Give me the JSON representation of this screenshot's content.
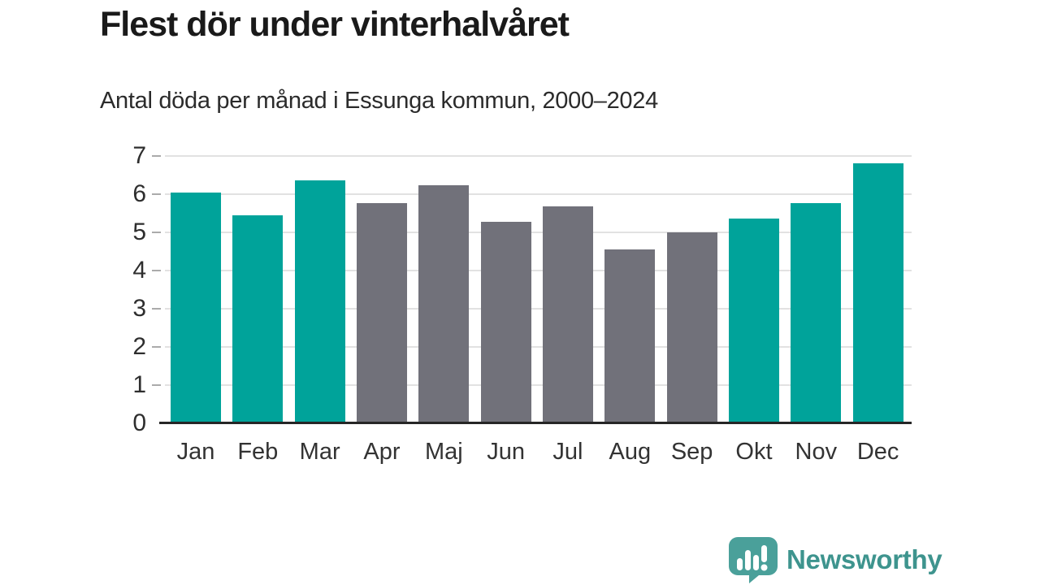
{
  "header": {
    "title": "Flest dör under vinterhalvåret",
    "subtitle": "Antal döda per månad i Essunga kommun, 2000–2024"
  },
  "chart_data": {
    "type": "bar",
    "title": "Flest dör under vinterhalvåret",
    "subtitle": "Antal döda per månad i Essunga kommun, 2000–2024",
    "categories": [
      "Jan",
      "Feb",
      "Mar",
      "Apr",
      "Maj",
      "Jun",
      "Jul",
      "Aug",
      "Sep",
      "Okt",
      "Nov",
      "Dec"
    ],
    "values": [
      6.04,
      5.44,
      6.36,
      5.76,
      6.24,
      5.28,
      5.68,
      4.56,
      5.0,
      5.36,
      5.76,
      6.8
    ],
    "bar_color_keys": [
      "teal",
      "teal",
      "teal",
      "gray",
      "gray",
      "gray",
      "gray",
      "gray",
      "gray",
      "teal",
      "teal",
      "teal"
    ],
    "colors": {
      "teal": "#00a39a",
      "gray": "#71717a"
    },
    "xlabel": "",
    "ylabel": "",
    "ylim": [
      0,
      7
    ],
    "yticks": [
      0,
      1,
      2,
      3,
      4,
      5,
      6,
      7
    ],
    "grid": true,
    "legend": "none"
  },
  "footer": {
    "brand": "Newsworthy",
    "brand_text_color": "#3e948e",
    "logo_bubble_color": "#4aa09a"
  }
}
